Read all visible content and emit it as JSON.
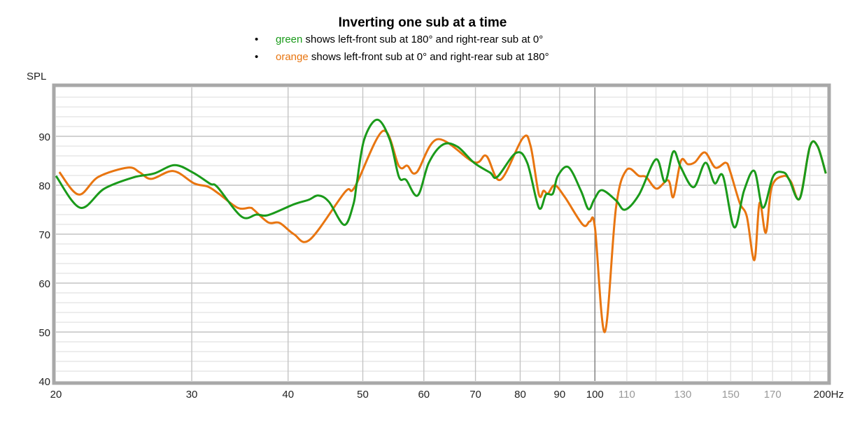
{
  "chart_data": {
    "type": "line",
    "title": "Inverting one sub at a time",
    "legend_notes": [
      {
        "bullet": "•",
        "color_word": "green",
        "rest": " shows left-front sub at 180° and right-rear sub at 0°",
        "color": "#1a9a1a"
      },
      {
        "bullet": "•",
        "color_word": "orange",
        "rest": " shows left-front sub at 0° and right-rear sub at 180°",
        "color": "#e87510"
      }
    ],
    "ylabel": "SPL",
    "xlabel": "Hz",
    "xscale": "log",
    "xlim": [
      20,
      200
    ],
    "ylim": [
      40,
      100
    ],
    "grid": true,
    "y_ticks": [
      40,
      50,
      60,
      70,
      80,
      90
    ],
    "y_tick_labels": [
      "40",
      "50",
      "60",
      "70",
      "80",
      "90"
    ],
    "x_ticks_major": [
      20,
      30,
      40,
      50,
      60,
      70,
      80,
      90,
      100
    ],
    "x_tick_labels_major": [
      "20",
      "30",
      "40",
      "50",
      "60",
      "70",
      "80",
      "90",
      "100"
    ],
    "x_ticks_minor": [
      110,
      130,
      150,
      170
    ],
    "x_tick_labels_minor": [
      "110",
      "130",
      "150",
      "170"
    ],
    "x_end_label": "200Hz",
    "series": [
      {
        "name": "green",
        "color": "#1a9a1a",
        "points": [
          [
            20,
            81.9
          ],
          [
            21.5,
            75.4
          ],
          [
            23.1,
            79.3
          ],
          [
            25.2,
            81.6
          ],
          [
            26.8,
            82.4
          ],
          [
            28.5,
            84.1
          ],
          [
            30.1,
            82.6
          ],
          [
            31.7,
            80.3
          ],
          [
            32.4,
            79.6
          ],
          [
            34.8,
            73.6
          ],
          [
            36.4,
            74.0
          ],
          [
            37.7,
            73.9
          ],
          [
            40.7,
            76.1
          ],
          [
            42.5,
            77.0
          ],
          [
            43.8,
            77.9
          ],
          [
            45.2,
            76.6
          ],
          [
            47.3,
            71.9
          ],
          [
            48.6,
            76.0
          ],
          [
            49.1,
            80.3
          ],
          [
            50.2,
            89.3
          ],
          [
            52.2,
            93.4
          ],
          [
            54.2,
            89.3
          ],
          [
            55.7,
            81.7
          ],
          [
            56.9,
            81.1
          ],
          [
            58.9,
            77.9
          ],
          [
            60.9,
            84.6
          ],
          [
            63.5,
            88.3
          ],
          [
            66.3,
            87.9
          ],
          [
            69.7,
            84.6
          ],
          [
            73.1,
            82.6
          ],
          [
            74.7,
            81.7
          ],
          [
            79.0,
            86.6
          ],
          [
            81.7,
            84.6
          ],
          [
            84.6,
            75.4
          ],
          [
            86.4,
            78.1
          ],
          [
            88.2,
            78.3
          ],
          [
            89.5,
            81.9
          ],
          [
            92.4,
            83.7
          ],
          [
            95.9,
            78.9
          ],
          [
            98.1,
            75.1
          ],
          [
            99.8,
            77.1
          ],
          [
            102.1,
            79.0
          ],
          [
            106.5,
            76.9
          ],
          [
            109.4,
            75.0
          ],
          [
            114.1,
            78.1
          ],
          [
            120.0,
            85.3
          ],
          [
            123.3,
            80.7
          ],
          [
            126.4,
            86.9
          ],
          [
            129.3,
            83.6
          ],
          [
            134.3,
            79.6
          ],
          [
            139.1,
            84.6
          ],
          [
            143.0,
            80.4
          ],
          [
            146.6,
            81.9
          ],
          [
            151.6,
            71.4
          ],
          [
            156.1,
            78.9
          ],
          [
            161.0,
            82.9
          ],
          [
            165.2,
            75.4
          ],
          [
            170.4,
            81.9
          ],
          [
            175.8,
            82.6
          ],
          [
            178.8,
            81.0
          ],
          [
            184.4,
            77.3
          ],
          [
            190.0,
            87.9
          ],
          [
            194.4,
            88.0
          ],
          [
            199.3,
            82.4
          ]
        ]
      },
      {
        "name": "orange",
        "color": "#e87510",
        "points": [
          [
            20.2,
            82.7
          ],
          [
            21.4,
            78.1
          ],
          [
            22.7,
            81.7
          ],
          [
            24.8,
            83.6
          ],
          [
            25.7,
            82.6
          ],
          [
            26.6,
            81.3
          ],
          [
            28.4,
            82.9
          ],
          [
            30.2,
            80.4
          ],
          [
            31.5,
            79.7
          ],
          [
            32.5,
            78.3
          ],
          [
            34.4,
            75.4
          ],
          [
            35.7,
            75.4
          ],
          [
            36.1,
            75.0
          ],
          [
            37.7,
            72.4
          ],
          [
            39.0,
            72.3
          ],
          [
            40.7,
            70.0
          ],
          [
            42.7,
            68.9
          ],
          [
            47.4,
            78.6
          ],
          [
            48.8,
            79.6
          ],
          [
            53.1,
            91.1
          ],
          [
            55.7,
            83.9
          ],
          [
            57.1,
            84.0
          ],
          [
            58.7,
            82.6
          ],
          [
            62.5,
            89.4
          ],
          [
            69.7,
            84.7
          ],
          [
            72.3,
            86.0
          ],
          [
            75.4,
            81.1
          ],
          [
            80.6,
            89.6
          ],
          [
            82.5,
            88.1
          ],
          [
            84.6,
            78.1
          ],
          [
            85.8,
            78.9
          ],
          [
            86.9,
            78.3
          ],
          [
            88.7,
            80.0
          ],
          [
            91.4,
            77.6
          ],
          [
            96.5,
            71.9
          ],
          [
            98.5,
            72.6
          ],
          [
            100.0,
            71.4
          ],
          [
            103.0,
            50.0
          ],
          [
            106.5,
            75.4
          ],
          [
            109.9,
            83.1
          ],
          [
            114.1,
            81.9
          ],
          [
            116.5,
            81.7
          ],
          [
            120.2,
            79.3
          ],
          [
            124.5,
            81.0
          ],
          [
            126.4,
            77.6
          ],
          [
            129.3,
            85.0
          ],
          [
            132.0,
            84.3
          ],
          [
            134.8,
            84.7
          ],
          [
            138.9,
            86.7
          ],
          [
            143.3,
            83.6
          ],
          [
            147.8,
            84.6
          ],
          [
            149.7,
            82.9
          ],
          [
            154.1,
            76.4
          ],
          [
            157.4,
            73.6
          ],
          [
            161.0,
            64.7
          ],
          [
            163.5,
            76.4
          ],
          [
            166.6,
            70.3
          ],
          [
            169.6,
            79.7
          ],
          [
            175.8,
            81.9
          ],
          [
            179.6,
            80.7
          ],
          [
            184.4,
            77.3
          ],
          [
            190.0,
            87.9
          ],
          [
            194.4,
            88.0
          ],
          [
            199.3,
            82.4
          ]
        ]
      }
    ]
  }
}
